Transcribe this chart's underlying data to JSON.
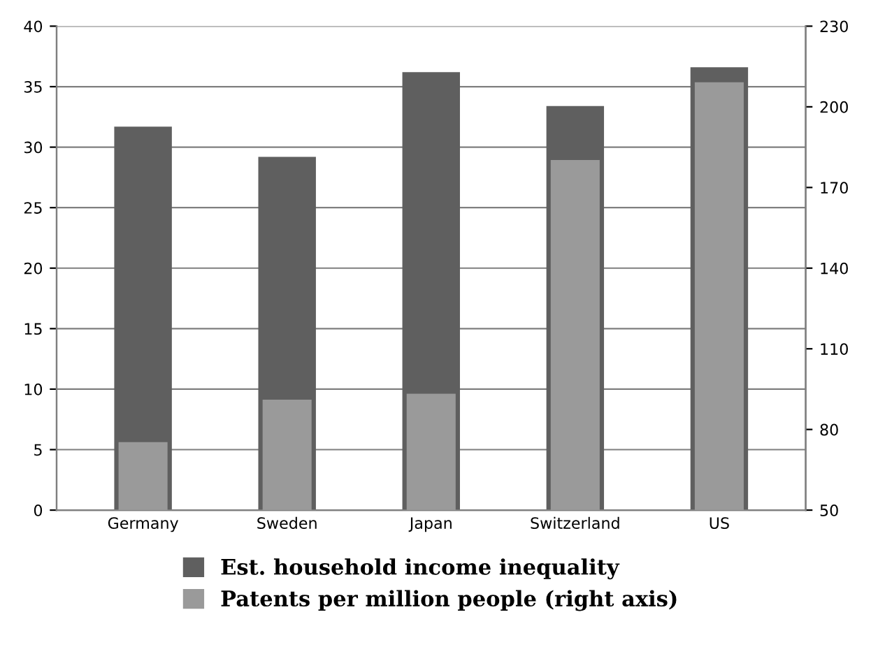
{
  "chart_data": {
    "type": "bar",
    "categories": [
      "Germany",
      "Sweden",
      "Japan",
      "Switzerland",
      "US"
    ],
    "series": [
      {
        "name": "Est. household income inequality",
        "color": "#5f5f5f",
        "values": [
          31.7,
          29.2,
          36.2,
          33.4,
          36.6
        ]
      },
      {
        "name": "Patents per million people (right axis)",
        "color": "#9a9a9a",
        "axis": "y2",
        "values": [
          75.3,
          91.1,
          93.3,
          180.2,
          209.1
        ]
      }
    ],
    "ylim": [
      0,
      40
    ],
    "yticks": [
      0,
      5,
      10,
      15,
      20,
      25,
      30,
      35,
      40
    ],
    "y2lim": [
      50,
      230
    ],
    "y2ticks": [
      50,
      80,
      110,
      140,
      170,
      200,
      230
    ],
    "grid": "y",
    "legend": "bottom"
  }
}
